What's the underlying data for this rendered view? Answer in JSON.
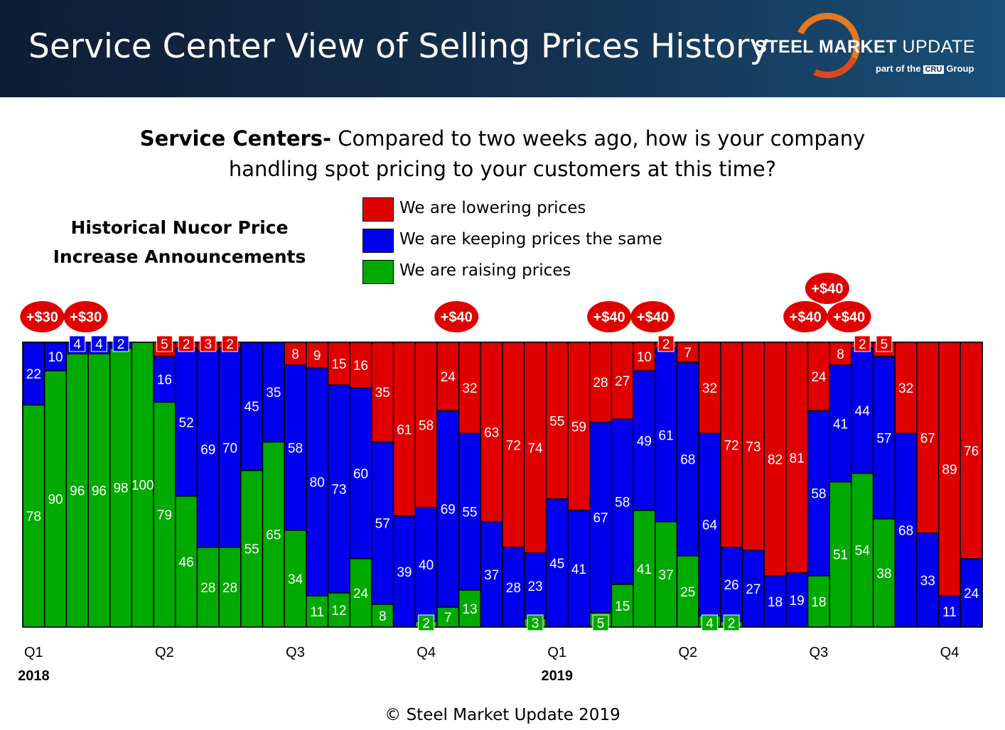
{
  "header": {
    "title": "Service Center View of Selling Prices History",
    "logo_main_bold": "STEEL MARKET",
    "logo_main_light": "UPDATE",
    "logo_sub_pre": "part of the",
    "logo_sub_cru": "CRU",
    "logo_sub_post": "Group"
  },
  "question": {
    "bold": "Service Centers-",
    "line1": " Compared to two weeks ago, how is your company",
    "line2": "handling spot pricing to your customers at this time?"
  },
  "nucor_title": {
    "line1": "Historical Nucor Price",
    "line2": "Increase Announcements"
  },
  "footer": "© Steel Market Update 2019",
  "colors": {
    "lowering": "#e00000",
    "same": "#0000ee",
    "raising": "#00aa00",
    "header_bg": "#14314f"
  },
  "chart_data": {
    "type": "bar",
    "stacked": true,
    "ylim": [
      0,
      100
    ],
    "grid": false,
    "legend_placement": "top",
    "series": [
      {
        "name": "We are lowering prices",
        "key": "lowering",
        "color": "#e00000",
        "values": [
          0,
          0,
          0,
          0,
          0,
          0,
          5,
          2,
          3,
          2,
          0,
          0,
          8,
          9,
          15,
          16,
          35,
          61,
          58,
          24,
          32,
          63,
          72,
          74,
          55,
          59,
          28,
          27,
          10,
          2,
          7,
          32,
          72,
          73,
          82,
          81,
          24,
          8,
          2,
          5,
          32,
          67,
          89,
          76
        ]
      },
      {
        "name": "We are keeping prices the same",
        "key": "same",
        "color": "#0000ee",
        "values": [
          22,
          10,
          4,
          4,
          2,
          0,
          16,
          52,
          69,
          70,
          45,
          35,
          58,
          80,
          73,
          60,
          57,
          39,
          40,
          69,
          55,
          37,
          28,
          23,
          45,
          41,
          67,
          58,
          49,
          61,
          68,
          64,
          26,
          27,
          18,
          19,
          58,
          41,
          44,
          57,
          68,
          33,
          11,
          24
        ]
      },
      {
        "name": "We are raising prices",
        "key": "raising",
        "color": "#00aa00",
        "values": [
          78,
          90,
          96,
          96,
          98,
          100,
          79,
          46,
          28,
          28,
          55,
          65,
          34,
          11,
          12,
          24,
          8,
          0,
          2,
          7,
          13,
          0,
          0,
          3,
          0,
          0,
          5,
          15,
          41,
          37,
          25,
          4,
          2,
          0,
          0,
          0,
          18,
          51,
          54,
          38,
          0,
          0,
          0,
          0
        ]
      }
    ],
    "x_ticks": [
      {
        "label": "Q1",
        "index": 0
      },
      {
        "label": "Q2",
        "index": 6
      },
      {
        "label": "Q3",
        "index": 12
      },
      {
        "label": "Q4",
        "index": 18
      },
      {
        "label": "Q1",
        "index": 24
      },
      {
        "label": "Q2",
        "index": 30
      },
      {
        "label": "Q3",
        "index": 36
      },
      {
        "label": "Q4",
        "index": 42
      }
    ],
    "year_labels": [
      {
        "label": "2018",
        "index": 0
      },
      {
        "label": "2019",
        "index": 24
      }
    ],
    "annotations": [
      {
        "text": "+$30",
        "index": 0,
        "stack": 0
      },
      {
        "text": "+$30",
        "index": 2,
        "stack": 0
      },
      {
        "text": "+$40",
        "index": 19,
        "stack": 0
      },
      {
        "text": "+$40",
        "index": 26,
        "stack": 0
      },
      {
        "text": "+$40",
        "index": 28,
        "stack": 0
      },
      {
        "text": "+$40",
        "index": 35,
        "stack": 0
      },
      {
        "text": "+$40",
        "index": 36,
        "stack": 1
      },
      {
        "text": "+$40",
        "index": 37,
        "stack": 0
      }
    ]
  }
}
